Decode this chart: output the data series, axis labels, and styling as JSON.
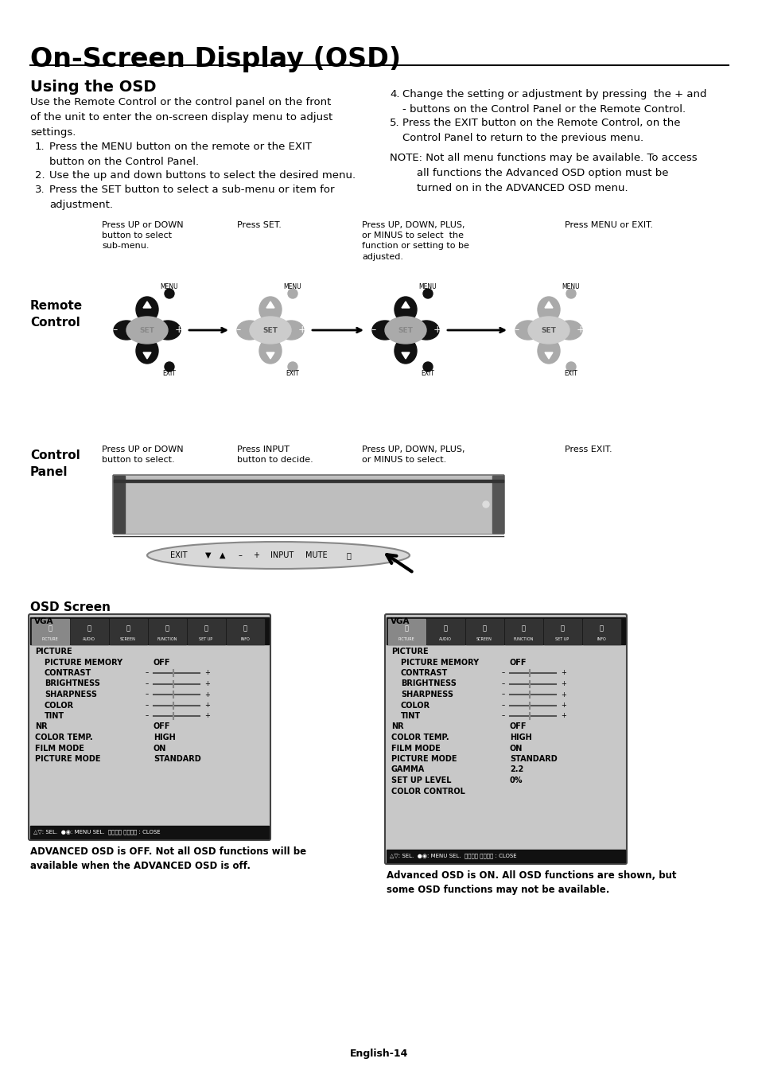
{
  "title": "On-Screen Display (OSD)",
  "section1_title": "Using the OSD",
  "section1_body": "Use the Remote Control or the control panel on the front\nof the unit to enter the on-screen display menu to adjust\nsettings.",
  "step1": "Press the MENU button on the remote or the EXIT\nbutton on the Control Panel.",
  "step2": "Use the up and down buttons to select the desired menu.",
  "step3": "Press the SET button to select a sub-menu or item for\nadjustment.",
  "item4": "Change the setting or adjustment by pressing  the + and\n- buttons on the Control Panel or the Remote Control.",
  "item5": "Press the EXIT button on the Remote Control, on the\nControl Panel to return to the previous menu.",
  "note_text": "NOTE: Not all menu functions may be available. To access\n        all functions the Advanced OSD option must be\n        turned on in the ADVANCED OSD menu.",
  "remote_label": "Remote\nControl",
  "control_panel_label": "Control\nPanel",
  "ri1": "Press UP or DOWN\nbutton to select\nsub-menu.",
  "ri2": "Press SET.",
  "ri3": "Press UP, DOWN, PLUS,\nor MINUS to select  the\nfunction or setting to be\nadjusted.",
  "ri4": "Press MENU or EXIT.",
  "ci1": "Press UP or DOWN\nbutton to select.",
  "ci2": "Press INPUT\nbutton to decide.",
  "ci3": "Press UP, DOWN, PLUS,\nor MINUS to select.",
  "ci4": "Press EXIT.",
  "osd_screen_label": "OSD Screen",
  "osd_left_caption": "ADVANCED OSD is OFF. Not all OSD functions will be\navailable when the ADVANCED OSD is off.",
  "osd_right_caption": "Advanced OSD is ON. All OSD functions are shown, but\nsome OSD functions may not be available.",
  "footer": "English-14",
  "bg_color": "#ffffff"
}
